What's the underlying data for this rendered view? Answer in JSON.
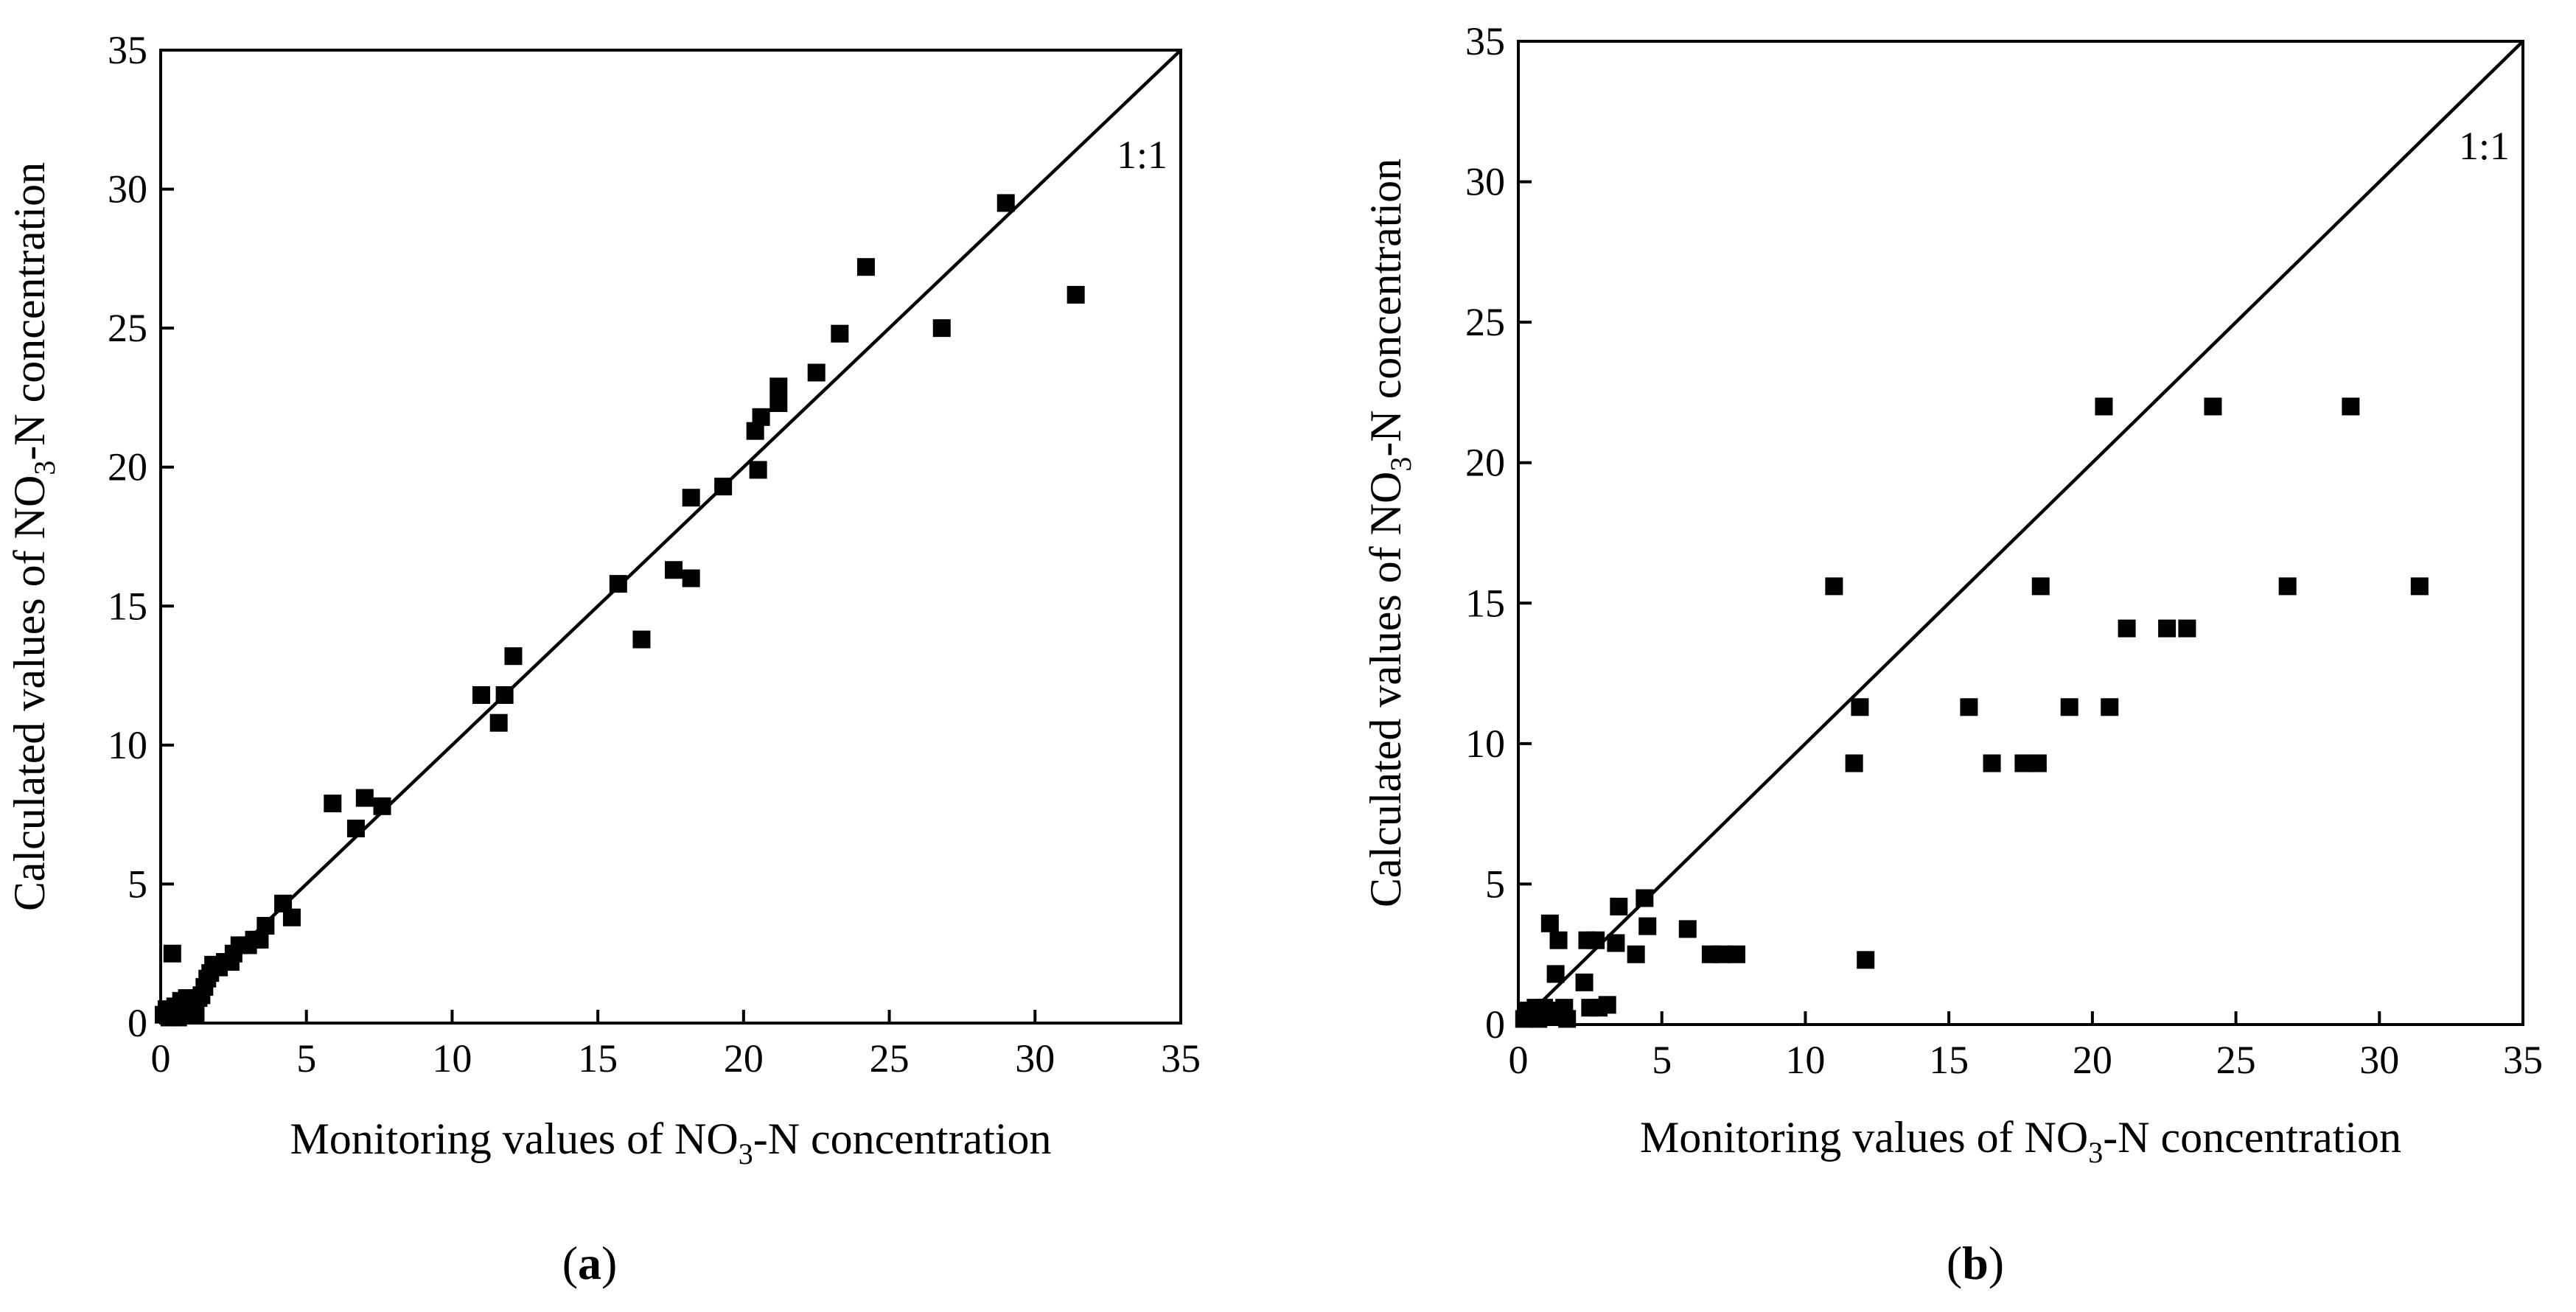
{
  "chart_data": [
    {
      "type": "scatter",
      "panel": "a",
      "xlabel": "Monitoring values of NO3-N concentration",
      "ylabel": "Calculated values of NO3-N concentration",
      "xlabel_parts": [
        "Monitoring values of NO",
        "3",
        "-N concentration"
      ],
      "ylabel_parts": [
        "Calculated values of NO",
        "3",
        "-N concentration"
      ],
      "xlim": [
        0,
        35
      ],
      "ylim": [
        0,
        35
      ],
      "xticks": [
        0,
        5,
        10,
        15,
        20,
        25,
        30,
        35
      ],
      "yticks": [
        0,
        5,
        10,
        15,
        20,
        25,
        30,
        35
      ],
      "reference_line_label": "1:1",
      "panel_label": "a",
      "points": [
        [
          0.1,
          0.3
        ],
        [
          0.2,
          0.5
        ],
        [
          0.3,
          0.2
        ],
        [
          0.4,
          2.5
        ],
        [
          0.5,
          0.6
        ],
        [
          0.6,
          0.2
        ],
        [
          0.7,
          0.8
        ],
        [
          0.8,
          0.4
        ],
        [
          0.9,
          0.9
        ],
        [
          1.0,
          0.6
        ],
        [
          1.1,
          0.8
        ],
        [
          1.2,
          0.3
        ],
        [
          1.3,
          0.9
        ],
        [
          1.4,
          1.0
        ],
        [
          1.5,
          1.3
        ],
        [
          1.6,
          1.6
        ],
        [
          1.7,
          1.8
        ],
        [
          1.8,
          2.1
        ],
        [
          2.0,
          2.0
        ],
        [
          2.2,
          2.2
        ],
        [
          2.4,
          2.2
        ],
        [
          2.5,
          2.5
        ],
        [
          2.7,
          2.8
        ],
        [
          3.0,
          2.8
        ],
        [
          3.2,
          3.0
        ],
        [
          3.4,
          3.0
        ],
        [
          3.6,
          3.5
        ],
        [
          4.2,
          4.3
        ],
        [
          4.5,
          3.8
        ],
        [
          5.9,
          7.9
        ],
        [
          6.7,
          7.0
        ],
        [
          7.0,
          8.1
        ],
        [
          7.6,
          7.8
        ],
        [
          11.0,
          11.8
        ],
        [
          11.6,
          10.8
        ],
        [
          11.8,
          11.8
        ],
        [
          12.1,
          13.2
        ],
        [
          15.7,
          15.8
        ],
        [
          16.5,
          13.8
        ],
        [
          17.6,
          16.3
        ],
        [
          18.2,
          16.0
        ],
        [
          18.2,
          18.9
        ],
        [
          19.3,
          19.3
        ],
        [
          20.4,
          21.3
        ],
        [
          20.5,
          19.9
        ],
        [
          20.6,
          21.8
        ],
        [
          21.2,
          22.9
        ],
        [
          21.2,
          22.3
        ],
        [
          22.5,
          23.4
        ],
        [
          23.3,
          24.8
        ],
        [
          24.2,
          27.2
        ],
        [
          26.8,
          25.0
        ],
        [
          29.0,
          29.5
        ],
        [
          31.4,
          26.2
        ]
      ]
    },
    {
      "type": "scatter",
      "panel": "b",
      "xlabel": "Monitoring values of NO3-N concentration",
      "ylabel": "Calculated values of NO3-N concentration",
      "xlabel_parts": [
        "Monitoring values of NO",
        "3",
        "-N concentration"
      ],
      "ylabel_parts": [
        "Calculated values of NO",
        "3",
        "-N concentration"
      ],
      "xlim": [
        0,
        35
      ],
      "ylim": [
        0,
        35
      ],
      "xticks": [
        0,
        5,
        10,
        15,
        20,
        25,
        30,
        35
      ],
      "yticks": [
        0,
        5,
        10,
        15,
        20,
        25,
        30,
        35
      ],
      "reference_line_label": "1:1",
      "panel_label": "b",
      "points": [
        [
          0.2,
          0.2
        ],
        [
          0.3,
          0.5
        ],
        [
          0.5,
          0.4
        ],
        [
          0.6,
          0.6
        ],
        [
          0.7,
          0.2
        ],
        [
          0.8,
          0.4
        ],
        [
          0.9,
          0.6
        ],
        [
          1.0,
          0.5
        ],
        [
          1.1,
          3.6
        ],
        [
          1.2,
          0.3
        ],
        [
          1.3,
          1.8
        ],
        [
          1.4,
          3.0
        ],
        [
          1.5,
          0.4
        ],
        [
          1.6,
          0.6
        ],
        [
          1.7,
          0.2
        ],
        [
          2.3,
          1.5
        ],
        [
          2.4,
          3.0
        ],
        [
          2.5,
          0.6
        ],
        [
          2.7,
          3.0
        ],
        [
          2.8,
          0.6
        ],
        [
          3.1,
          0.7
        ],
        [
          3.4,
          2.9
        ],
        [
          3.5,
          4.2
        ],
        [
          4.1,
          2.5
        ],
        [
          4.4,
          4.5
        ],
        [
          4.5,
          3.5
        ],
        [
          5.9,
          3.4
        ],
        [
          6.7,
          2.5
        ],
        [
          7.1,
          2.5
        ],
        [
          7.6,
          2.5
        ],
        [
          11.0,
          15.6
        ],
        [
          11.7,
          9.3
        ],
        [
          11.9,
          11.3
        ],
        [
          12.1,
          2.3
        ],
        [
          15.7,
          11.3
        ],
        [
          16.5,
          9.3
        ],
        [
          17.6,
          9.3
        ],
        [
          18.1,
          9.3
        ],
        [
          18.2,
          15.6
        ],
        [
          19.2,
          11.3
        ],
        [
          20.4,
          22.0
        ],
        [
          20.6,
          11.3
        ],
        [
          21.2,
          14.1
        ],
        [
          22.6,
          14.1
        ],
        [
          23.3,
          14.1
        ],
        [
          24.2,
          22.0
        ],
        [
          26.8,
          15.6
        ],
        [
          29.0,
          22.0
        ],
        [
          31.4,
          15.6
        ]
      ]
    }
  ]
}
